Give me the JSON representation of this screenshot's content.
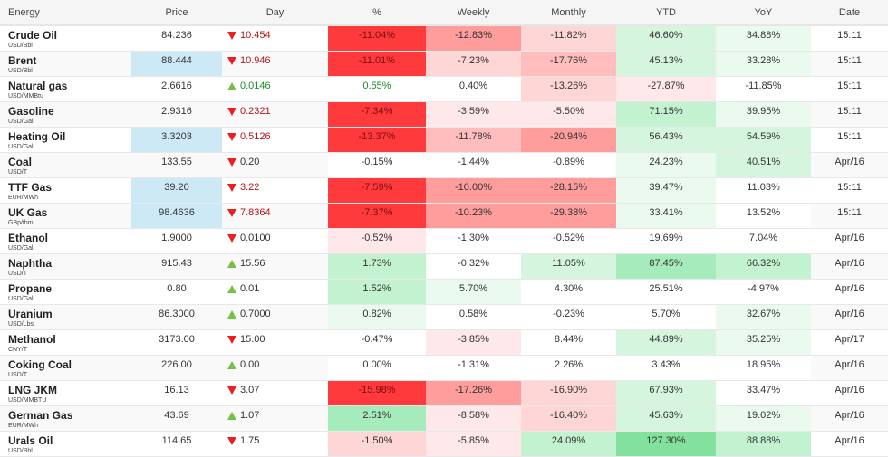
{
  "headers": [
    "Energy",
    "Price",
    "Day",
    "%",
    "Weekly",
    "Monthly",
    "YTD",
    "YoY",
    "Date"
  ],
  "colors": {
    "highlight": "#cde9f6",
    "down": "#e8201f",
    "up": "#76c046",
    "strong_red": "#ff3a3d",
    "strong_green": "#83e19e"
  },
  "rows": [
    {
      "name": "Crude Oil",
      "unit": "USD/Bbl",
      "price": "84.236",
      "day": "10.454",
      "dir": "down",
      "live": true,
      "pct": "-11.04%",
      "weekly": "-12.83%",
      "monthly": "-11.82%",
      "ytd": "46.60%",
      "yoy": "34.88%",
      "date": "15:11",
      "hl": false,
      "shade": [
        "r4",
        "r3",
        "r1",
        "g1",
        "g0"
      ]
    },
    {
      "name": "Brent",
      "unit": "USD/Bbl",
      "price": "88.444",
      "day": "10.946",
      "dir": "down",
      "live": true,
      "pct": "-11.01%",
      "weekly": "-7.23%",
      "monthly": "-17.76%",
      "ytd": "45.13%",
      "yoy": "33.28%",
      "date": "15:11",
      "hl": true,
      "shade": [
        "r4",
        "r1",
        "r2",
        "g1",
        "g0"
      ]
    },
    {
      "name": "Natural gas",
      "unit": "USD/MMBtu",
      "price": "2.6616",
      "day": "0.0146",
      "dir": "up",
      "live": true,
      "pct": "0.55%",
      "weekly": "0.40%",
      "monthly": "-13.26%",
      "ytd": "-27.87%",
      "yoy": "-11.85%",
      "date": "15:11",
      "hl": false,
      "shade": [
        "w",
        "w",
        "r1",
        "r0",
        "w"
      ]
    },
    {
      "name": "Gasoline",
      "unit": "USD/Gal",
      "price": "2.9316",
      "day": "0.2321",
      "dir": "down",
      "live": true,
      "pct": "-7.34%",
      "weekly": "-3.59%",
      "monthly": "-5.50%",
      "ytd": "71.15%",
      "yoy": "39.95%",
      "date": "15:11",
      "hl": false,
      "shade": [
        "r4",
        "r0",
        "r0",
        "g2",
        "g0"
      ]
    },
    {
      "name": "Heating Oil",
      "unit": "USD/Gal",
      "price": "3.3203",
      "day": "0.5126",
      "dir": "down",
      "live": true,
      "pct": "-13.37%",
      "weekly": "-11.78%",
      "monthly": "-20.94%",
      "ytd": "56.43%",
      "yoy": "54.59%",
      "date": "15:11",
      "hl": true,
      "shade": [
        "r4",
        "r2",
        "r3",
        "g1",
        "g1"
      ]
    },
    {
      "name": "Coal",
      "unit": "USD/T",
      "price": "133.55",
      "day": "0.20",
      "dir": "down",
      "live": false,
      "pct": "-0.15%",
      "weekly": "-1.44%",
      "monthly": "-0.89%",
      "ytd": "24.23%",
      "yoy": "40.51%",
      "date": "Apr/16",
      "hl": false,
      "shade": [
        "w",
        "w",
        "w",
        "g0",
        "g1"
      ]
    },
    {
      "name": "TTF Gas",
      "unit": "EUR/MWh",
      "price": "39.20",
      "day": "3.22",
      "dir": "down",
      "live": true,
      "pct": "-7.59%",
      "weekly": "-10.00%",
      "monthly": "-28.15%",
      "ytd": "39.47%",
      "yoy": "11.03%",
      "date": "15:11",
      "hl": true,
      "shade": [
        "r4",
        "r3",
        "r3",
        "g0",
        "w"
      ]
    },
    {
      "name": "UK Gas",
      "unit": "GBp/thm",
      "price": "98.4636",
      "day": "7.8364",
      "dir": "down",
      "live": true,
      "pct": "-7.37%",
      "weekly": "-10.23%",
      "monthly": "-29.38%",
      "ytd": "33.41%",
      "yoy": "13.52%",
      "date": "15:11",
      "hl": true,
      "shade": [
        "r4",
        "r3",
        "r3",
        "g0",
        "w"
      ]
    },
    {
      "name": "Ethanol",
      "unit": "USD/Gal",
      "price": "1.9000",
      "day": "0.0100",
      "dir": "down",
      "live": false,
      "pct": "-0.52%",
      "weekly": "-1.30%",
      "monthly": "-0.52%",
      "ytd": "19.69%",
      "yoy": "7.04%",
      "date": "Apr/16",
      "hl": false,
      "shade": [
        "r0",
        "w",
        "w",
        "w",
        "w"
      ]
    },
    {
      "name": "Naphtha",
      "unit": "USD/T",
      "price": "915.43",
      "day": "15.56",
      "dir": "up",
      "live": false,
      "pct": "1.73%",
      "weekly": "-0.32%",
      "monthly": "11.05%",
      "ytd": "87.45%",
      "yoy": "66.32%",
      "date": "Apr/16",
      "hl": false,
      "shade": [
        "g2",
        "w",
        "g1",
        "g3",
        "g2"
      ]
    },
    {
      "name": "Propane",
      "unit": "USD/Gal",
      "price": "0.80",
      "day": "0.01",
      "dir": "up",
      "live": false,
      "pct": "1.52%",
      "weekly": "5.70%",
      "monthly": "4.30%",
      "ytd": "25.51%",
      "yoy": "-4.97%",
      "date": "Apr/16",
      "hl": false,
      "shade": [
        "g2",
        "g0",
        "w",
        "w",
        "w"
      ]
    },
    {
      "name": "Uranium",
      "unit": "USD/Lbs",
      "price": "86.3000",
      "day": "0.7000",
      "dir": "up",
      "live": false,
      "pct": "0.82%",
      "weekly": "0.58%",
      "monthly": "-0.23%",
      "ytd": "5.70%",
      "yoy": "32.67%",
      "date": "Apr/16",
      "hl": false,
      "shade": [
        "g0",
        "w",
        "w",
        "w",
        "g0"
      ]
    },
    {
      "name": "Methanol",
      "unit": "CNY/T",
      "price": "3173.00",
      "day": "15.00",
      "dir": "down",
      "live": false,
      "pct": "-0.47%",
      "weekly": "-3.85%",
      "monthly": "8.44%",
      "ytd": "44.89%",
      "yoy": "35.25%",
      "date": "Apr/17",
      "hl": false,
      "shade": [
        "w",
        "r0",
        "w",
        "g1",
        "g0"
      ]
    },
    {
      "name": "Coking Coal",
      "unit": "USD/T",
      "price": "226.00",
      "day": "0.00",
      "dir": "up",
      "live": false,
      "pct": "0.00%",
      "weekly": "-1.31%",
      "monthly": "2.26%",
      "ytd": "3.43%",
      "yoy": "18.95%",
      "date": "Apr/16",
      "hl": false,
      "shade": [
        "w",
        "w",
        "w",
        "w",
        "w"
      ]
    },
    {
      "name": "LNG JKM",
      "unit": "USD/MMBTU",
      "price": "16.13",
      "day": "3.07",
      "dir": "down",
      "live": false,
      "pct": "-15.98%",
      "weekly": "-17.26%",
      "monthly": "-16.90%",
      "ytd": "67.93%",
      "yoy": "33.47%",
      "date": "Apr/16",
      "hl": false,
      "shade": [
        "r4",
        "r3",
        "r1",
        "g1",
        "w"
      ]
    },
    {
      "name": "German Gas",
      "unit": "EUR/MWh",
      "price": "43.69",
      "day": "1.07",
      "dir": "up",
      "live": false,
      "pct": "2.51%",
      "weekly": "-8.58%",
      "monthly": "-16.40%",
      "ytd": "45.63%",
      "yoy": "19.02%",
      "date": "Apr/16",
      "hl": false,
      "shade": [
        "g3",
        "r0",
        "r1",
        "g1",
        "g0"
      ]
    },
    {
      "name": "Urals Oil",
      "unit": "USD/Bbl",
      "price": "114.65",
      "day": "1.75",
      "dir": "down",
      "live": false,
      "pct": "-1.50%",
      "weekly": "-5.85%",
      "monthly": "24.09%",
      "ytd": "127.30%",
      "yoy": "88.88%",
      "date": "Apr/16",
      "hl": false,
      "shade": [
        "r1",
        "r0",
        "g2",
        "g4",
        "g2"
      ]
    }
  ]
}
